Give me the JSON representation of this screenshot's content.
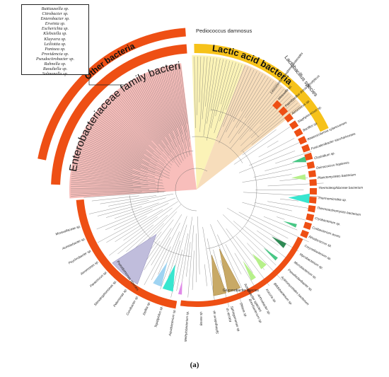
{
  "caption": "(a)",
  "arc_labels": {
    "lactic": "Lactic acid bacteria",
    "other": "Other bacteria",
    "entero": "Enterobacteriaceae family bacteria"
  },
  "clade_labels": {
    "pediococcus": "Pediococcus damnosus",
    "lactobacillus": "Lactobacillus species",
    "pseudomonas": "Pseudomonas species",
    "gluconobacter": "Gluconobacter species",
    "acetobacter": "Acetobacter species"
  },
  "legend_items": [
    "Buttiauxella sp.",
    "Citrobacter sp.",
    "Enterobacter sp.",
    "Erwinia sp.",
    "Escherichia sp.",
    "Klebsiella sp.",
    "Kluyvera sp.",
    "Leiliottia sp.",
    "Pantoea sp.",
    "Providencia sp.",
    "Pseudocitrobacter sp.",
    "Rahnella sp.",
    "Raoultella sp.",
    "Salmonella sp."
  ],
  "right_tips": [
    "Leuconostoc pseudomesenteroides",
    "Weissella sp.",
    "Paenibacillus durus/glycolyticus",
    "Aerococcus sp.",
    "Staphylococcus sp.",
    "Bacillus sp.",
    "Anaerocolumna xylanovorans",
    "Fusicatenibacter saccharivorans",
    "Clostridium sp.",
    "Deinococcus hopiensis",
    "Planctomycetes bacterium",
    "Thermoleophilaceae bacterium",
    "Thermomicrobia sp.",
    "Thermoactinomyces bacterium"
  ],
  "bottom_right_tips": [
    "Cryobacterium sp.",
    "Cutibacterium acnes",
    "Rhodococcus sp.",
    "Corynebacterium sp.",
    "Mycobacterium sp.",
    "Microbacterium sp.",
    "Pseudoclavibacter sp.",
    "Actinomycetales bacterium",
    "Bifidobacterium sp.",
    "Kocuria sp.",
    "Arthrobacter sp.",
    "Brevibacterium sp.",
    "Dietzia sp.",
    "Sphingomonas sp."
  ],
  "bottom_tips": [
    "Moraxellaceae sp.",
    "Acinetobacter sp.",
    "Psychrobacter sp.",
    "Aeromonas sp.",
    "Paracoccus sp.",
    "Stenotrophomonas sp.",
    "Pelomonas sp.",
    "Curvibacter sp.",
    "Delftia sp.",
    "Tepidiphilus sp.",
    "Aquabacterium sp.",
    "Methylobacterium sp.",
    "Bosea sp.",
    "Sphingobium sp.",
    "Kaistia sp."
  ],
  "colors": {
    "orange": "#ee4f14",
    "gold": "#f6c21a",
    "entero_fill": "#f7b7b4",
    "lacto_fill": "#f7ddbb",
    "pedio_fill": "#fbf3b7",
    "pseudo_fill": "#c0bddc",
    "aceto_fill": "#c8a966",
    "light_green": "#b6f08a",
    "mid_green": "#48c785",
    "dark_green": "#2f8a55",
    "cyan": "#38e6cf",
    "sky": "#9fd4f2",
    "pink": "#e08ae8"
  }
}
